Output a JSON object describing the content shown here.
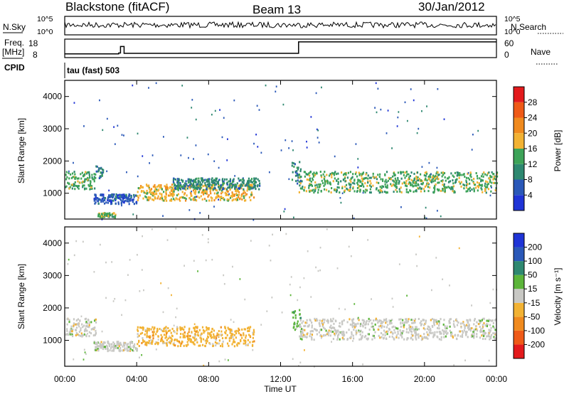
{
  "header": {
    "station": "Blackstone (fitACF)",
    "beam": "Beam 13",
    "date": "30/Jan/2012"
  },
  "side_labels": {
    "nsky": "N.Sky",
    "freq": "Freq.",
    "mhz": "[MHz]",
    "cpid": "CPID",
    "nsearch": "N.Search",
    "nave": "Nave"
  },
  "cpid_text": "tau (fast) 503",
  "colors": {
    "power": [
      "#1f34d6",
      "#2a58b8",
      "#2e8870",
      "#3da358",
      "#f2b233",
      "#f08a1e",
      "#ef5a17",
      "#e31a1c"
    ],
    "velocity": [
      "#e31a1c",
      "#ef5a17",
      "#f08a1e",
      "#f2b233",
      "#c8c8c4",
      "#5cb53a",
      "#2e8870",
      "#2a58b8",
      "#1f34d6"
    ]
  },
  "chart_data": [
    {
      "type": "line",
      "panel": "noise",
      "left_ticks": [
        "10^5",
        "10^0"
      ],
      "right_ticks": [
        "10^5",
        "10^0"
      ],
      "series": [
        {
          "name": "N.Sky",
          "style": "solid"
        },
        {
          "name": "N.Search",
          "style": "dotted"
        }
      ],
      "note": "N.Sky near 10^5 throughout the day"
    },
    {
      "type": "line",
      "panel": "frequency-nave",
      "left_ticks": [
        "18",
        "8"
      ],
      "right_ticks": [
        "60",
        "0"
      ],
      "x": [
        0,
        3.0,
        3.1,
        3.3,
        13.0,
        24.0
      ],
      "frequency_mhz": [
        10.0,
        10.5,
        14.0,
        10.3,
        16.5,
        16.5
      ],
      "nave": [
        0,
        0,
        0,
        0,
        0,
        0
      ],
      "series": [
        {
          "name": "Freq.",
          "style": "solid"
        },
        {
          "name": "Nave",
          "style": "dotted"
        }
      ]
    },
    {
      "type": "heatmap",
      "panel": "power",
      "ylabel": "Slant Range [km]",
      "y_ticks": [
        "1000",
        "2000",
        "3000",
        "4000"
      ],
      "ylim": [
        200,
        4500
      ],
      "xlim": [
        0,
        24
      ],
      "colorbar_label": "Power [dB]",
      "colorbar_ticks": [
        "4",
        "8",
        "12",
        "16",
        "20",
        "24",
        "28"
      ],
      "clim": [
        0,
        32
      ],
      "bands": [
        {
          "t_start": 0.0,
          "t_end": 1.7,
          "range_start": 1150,
          "range_end": 1700,
          "level": 14
        },
        {
          "t_start": 1.7,
          "t_end": 2.1,
          "range_start": 1500,
          "range_end": 1900,
          "level": 10
        },
        {
          "t_start": 1.6,
          "t_end": 4.0,
          "range_start": 700,
          "range_end": 1000,
          "level": 6
        },
        {
          "t_start": 4.0,
          "t_end": 10.5,
          "range_start": 800,
          "range_end": 1300,
          "level": 16
        },
        {
          "t_start": 6.0,
          "t_end": 10.8,
          "range_start": 1150,
          "range_end": 1500,
          "level": 8
        },
        {
          "t_start": 1.8,
          "t_end": 2.8,
          "range_start": 280,
          "range_end": 420,
          "level": 14
        },
        {
          "t_start": 12.6,
          "t_end": 13.1,
          "range_start": 1300,
          "range_end": 2000,
          "level": 10
        },
        {
          "t_start": 13.0,
          "t_end": 24.0,
          "range_start": 1050,
          "range_end": 1700,
          "level": 14
        }
      ]
    },
    {
      "type": "heatmap",
      "panel": "velocity",
      "ylabel": "Slant Range [km]",
      "xlabel": "Time UT",
      "y_ticks": [
        "1000",
        "2000",
        "3000",
        "4000"
      ],
      "ylim": [
        200,
        4500
      ],
      "xlim": [
        0,
        24
      ],
      "x_ticks": [
        "00:00",
        "04:00",
        "08:00",
        "12:00",
        "16:00",
        "20:00",
        "00:00"
      ],
      "colorbar_label": "Velocity [m s⁻¹]",
      "colorbar_ticks": [
        "-200",
        "-100",
        "-50",
        "-15",
        "15",
        "50",
        "100",
        "200"
      ],
      "clim": [
        -250,
        250
      ],
      "bands": [
        {
          "t_start": 0.0,
          "t_end": 1.7,
          "range_start": 1150,
          "range_end": 1700,
          "level": 0
        },
        {
          "t_start": 1.6,
          "t_end": 4.0,
          "range_start": 700,
          "range_end": 1000,
          "level": 0
        },
        {
          "t_start": 4.0,
          "t_end": 10.5,
          "range_start": 850,
          "range_end": 1450,
          "level": -40
        },
        {
          "t_start": 12.6,
          "t_end": 13.1,
          "range_start": 1300,
          "range_end": 2000,
          "level": 40
        },
        {
          "t_start": 13.0,
          "t_end": 24.0,
          "range_start": 1050,
          "range_end": 1700,
          "level": 0
        }
      ]
    }
  ]
}
